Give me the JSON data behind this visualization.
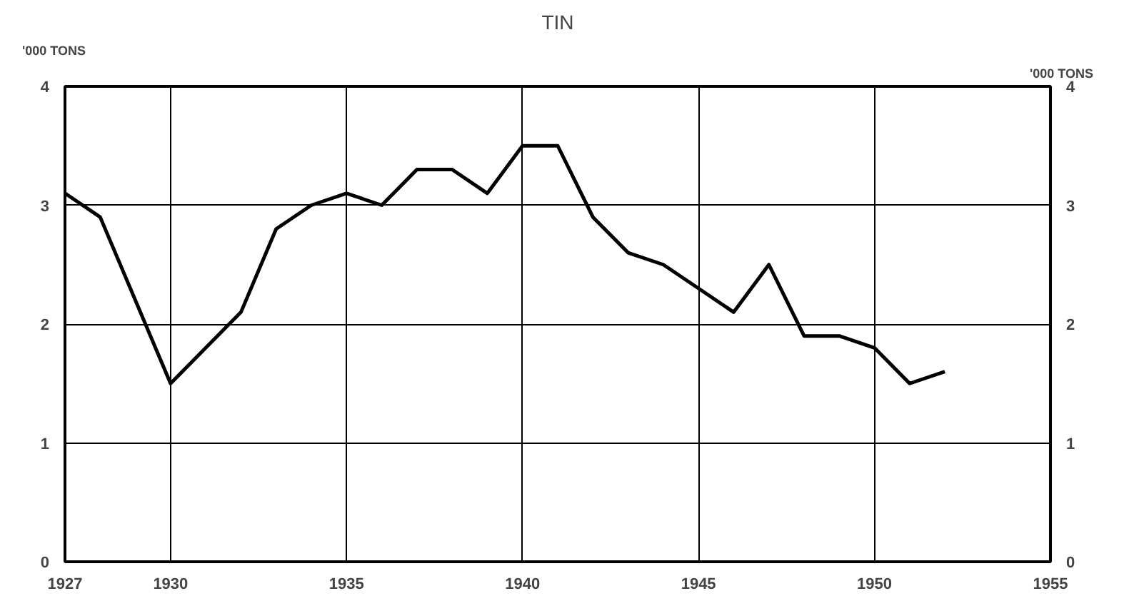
{
  "chart_data": {
    "type": "line",
    "title": "TIN",
    "ylabel": "'000 TONS",
    "y2label": "'000 TONS",
    "x": [
      1927,
      1928,
      1929,
      1930,
      1931,
      1932,
      1933,
      1934,
      1935,
      1936,
      1937,
      1938,
      1939,
      1940,
      1941,
      1942,
      1943,
      1944,
      1945,
      1946,
      1947,
      1948,
      1949,
      1950,
      1951,
      1952
    ],
    "series": [
      {
        "color": "#000000",
        "values": [
          3.1,
          2.9,
          null,
          1.5,
          1.8,
          2.1,
          2.8,
          3.0,
          3.1,
          3.0,
          3.3,
          3.3,
          3.1,
          3.5,
          3.5,
          2.9,
          2.6,
          2.5,
          2.3,
          2.1,
          2.5,
          1.9,
          1.9,
          1.8,
          1.5,
          1.6
        ]
      }
    ],
    "xlim": [
      1927,
      1955
    ],
    "xticks": [
      1927,
      1930,
      1935,
      1940,
      1945,
      1950,
      1955
    ],
    "ylim": [
      0,
      4
    ],
    "yticks": [
      0,
      1,
      2,
      3,
      4
    ],
    "y2lim": [
      0,
      4
    ],
    "y2ticks": [
      0,
      1,
      2,
      3,
      4
    ],
    "grid": true,
    "marker": "none",
    "line_style": "solid"
  }
}
